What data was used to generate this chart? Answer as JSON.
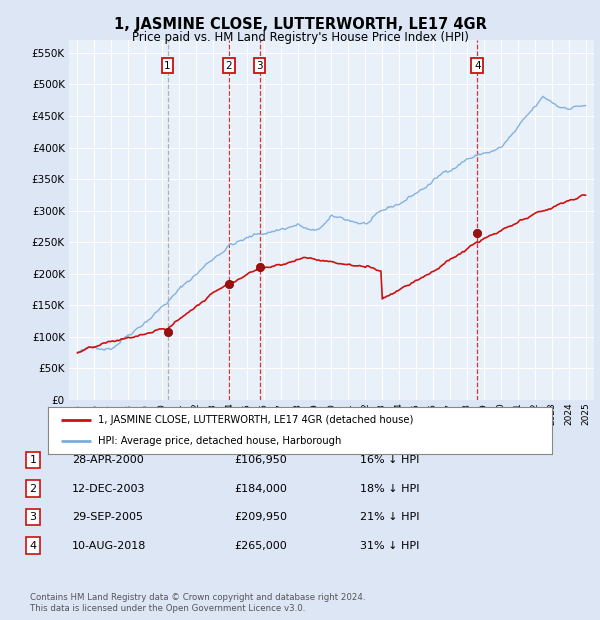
{
  "title": "1, JASMINE CLOSE, LUTTERWORTH, LE17 4GR",
  "subtitle": "Price paid vs. HM Land Registry's House Price Index (HPI)",
  "ytick_values": [
    0,
    50000,
    100000,
    150000,
    200000,
    250000,
    300000,
    350000,
    400000,
    450000,
    500000,
    550000
  ],
  "ylim": [
    0,
    570000
  ],
  "xlim_start": 1994.5,
  "xlim_end": 2025.5,
  "background_color": "#dce6f5",
  "plot_bg_color": "#e8f0fa",
  "grid_color": "#ffffff",
  "sales": [
    {
      "label": "1",
      "year": 2000.32,
      "price": 106950,
      "vline_color": "#aaaaaa",
      "vline_style": "--"
    },
    {
      "label": "2",
      "year": 2003.95,
      "price": 184000,
      "vline_color": "#cc2222",
      "vline_style": "--"
    },
    {
      "label": "3",
      "year": 2005.75,
      "price": 209950,
      "vline_color": "#cc2222",
      "vline_style": "--"
    },
    {
      "label": "4",
      "year": 2018.61,
      "price": 265000,
      "vline_color": "#cc2222",
      "vline_style": "--"
    }
  ],
  "legend_line1": "1, JASMINE CLOSE, LUTTERWORTH, LE17 4GR (detached house)",
  "legend_line2": "HPI: Average price, detached house, Harborough",
  "table_rows": [
    [
      "1",
      "28-APR-2000",
      "£106,950",
      "16% ↓ HPI"
    ],
    [
      "2",
      "12-DEC-2003",
      "£184,000",
      "18% ↓ HPI"
    ],
    [
      "3",
      "29-SEP-2005",
      "£209,950",
      "21% ↓ HPI"
    ],
    [
      "4",
      "10-AUG-2018",
      "£265,000",
      "31% ↓ HPI"
    ]
  ],
  "footer": "Contains HM Land Registry data © Crown copyright and database right 2024.\nThis data is licensed under the Open Government Licence v3.0.",
  "hpi_color": "#7aabda",
  "price_color": "#cc1111",
  "label_box_color": "#cc1111"
}
